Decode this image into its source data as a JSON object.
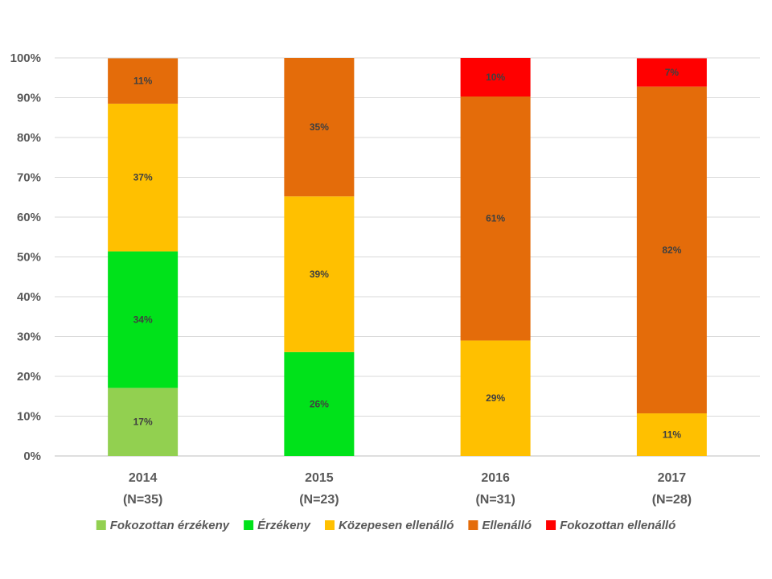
{
  "chart_data": {
    "type": "stacked-bar-100",
    "title": "",
    "xlabel": "",
    "ylabel": "",
    "ylim": [
      0,
      100
    ],
    "yticks": [
      "0%",
      "10%",
      "20%",
      "30%",
      "40%",
      "50%",
      "60%",
      "70%",
      "80%",
      "90%",
      "100%"
    ],
    "categories": [
      {
        "year": "2014",
        "n": "(N=35)"
      },
      {
        "year": "2015",
        "n": "(N=23)"
      },
      {
        "year": "2016",
        "n": "(N=31)"
      },
      {
        "year": "2017",
        "n": "(N=28)"
      }
    ],
    "series": [
      {
        "name": "Fokozottan érzékeny",
        "color": "#92d050",
        "values": [
          17.1,
          0,
          0,
          0
        ],
        "labels": [
          "17%",
          "",
          "",
          ""
        ]
      },
      {
        "name": "Érzékeny",
        "color": "#00e21a",
        "values": [
          34.3,
          26.1,
          0,
          0
        ],
        "labels": [
          "34%",
          "26%",
          "",
          ""
        ]
      },
      {
        "name": "Közepesen ellenálló",
        "color": "#ffc000",
        "values": [
          37.1,
          39.1,
          29.0,
          10.7
        ],
        "labels": [
          "37%",
          "39%",
          "29%",
          "11%"
        ]
      },
      {
        "name": "Ellenálló",
        "color": "#e46c0a",
        "values": [
          11.4,
          34.8,
          61.3,
          82.1
        ],
        "labels": [
          "11%",
          "35%",
          "61%",
          "82%"
        ]
      },
      {
        "name": "Fokozottan ellenálló",
        "color": "#ff0000",
        "values": [
          0,
          0,
          9.7,
          7.1
        ],
        "labels": [
          "",
          "",
          "10%",
          "7%"
        ]
      }
    ],
    "grid": true,
    "legend_position": "bottom"
  }
}
